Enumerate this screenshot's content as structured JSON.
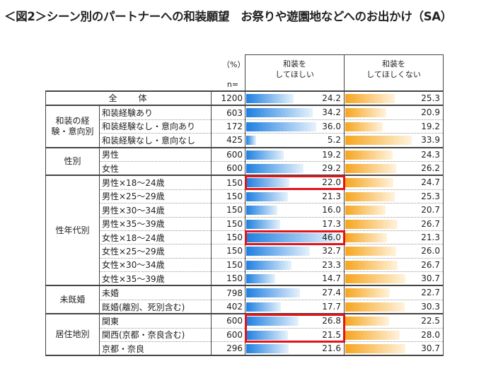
{
  "title": "＜図2＞シーン別のパートナーへの和装願望　お祭りや遊園地などへのお出かけ（SA）",
  "chart_data": {
    "type": "bar",
    "title": "＜図2＞シーン別のパートナーへの和装願望　お祭りや遊園地などへのお出かけ（SA）",
    "unit_label": "（%）",
    "n_label": "n=",
    "series": [
      {
        "name": "和装を してほしい",
        "color": "#1e7fe0"
      },
      {
        "name": "和装を してほしくない",
        "color": "#f6a51e"
      }
    ],
    "groups": [
      {
        "label": "全　　体",
        "rows": [
          {
            "label": "",
            "n": 1200,
            "want": 24.2,
            "not": 25.3
          }
        ]
      },
      {
        "label": "和装の経験・意向別",
        "rows": [
          {
            "label": "和装経験あり",
            "n": 603,
            "want": 34.2,
            "not": 20.9
          },
          {
            "label": "和装経験なし・意向あり",
            "n": 172,
            "want": 36.0,
            "not": 19.2
          },
          {
            "label": "和装経験なし・意向なし",
            "n": 425,
            "want": 5.2,
            "not": 33.9
          }
        ]
      },
      {
        "label": "性別",
        "rows": [
          {
            "label": "男性",
            "n": 600,
            "want": 19.2,
            "not": 24.3
          },
          {
            "label": "女性",
            "n": 600,
            "want": 29.2,
            "not": 26.2
          }
        ]
      },
      {
        "label": "性年代別",
        "rows": [
          {
            "label": "男性×18～24歳",
            "n": 150,
            "want": 22.0,
            "not": 24.7,
            "highlight": true
          },
          {
            "label": "男性×25～29歳",
            "n": 150,
            "want": 21.3,
            "not": 25.3
          },
          {
            "label": "男性×30～34歳",
            "n": 150,
            "want": 16.0,
            "not": 20.7
          },
          {
            "label": "男性×35～39歳",
            "n": 150,
            "want": 17.3,
            "not": 26.7
          },
          {
            "label": "女性×18～24歳",
            "n": 150,
            "want": 46.0,
            "not": 21.3,
            "highlight": true
          },
          {
            "label": "女性×25～29歳",
            "n": 150,
            "want": 32.7,
            "not": 26.0
          },
          {
            "label": "女性×30～34歳",
            "n": 150,
            "want": 23.3,
            "not": 26.7
          },
          {
            "label": "女性×35～39歳",
            "n": 150,
            "want": 14.7,
            "not": 30.7
          }
        ]
      },
      {
        "label": "未既婚",
        "rows": [
          {
            "label": "未婚",
            "n": 798,
            "want": 27.4,
            "not": 22.7
          },
          {
            "label": "既婚(離別、死別含む)",
            "n": 402,
            "want": 17.7,
            "not": 30.3
          }
        ]
      },
      {
        "label": "居住地別",
        "rows": [
          {
            "label": "関東",
            "n": 600,
            "want": 26.8,
            "not": 22.5,
            "highlight": true
          },
          {
            "label": "関西(京都・奈良含む)",
            "n": 600,
            "want": 21.5,
            "not": 28.0,
            "highlight": true
          },
          {
            "label": "京都・奈良",
            "n": 296,
            "want": 21.6,
            "not": 30.7
          }
        ]
      }
    ],
    "xlim": [
      0,
      50
    ]
  }
}
